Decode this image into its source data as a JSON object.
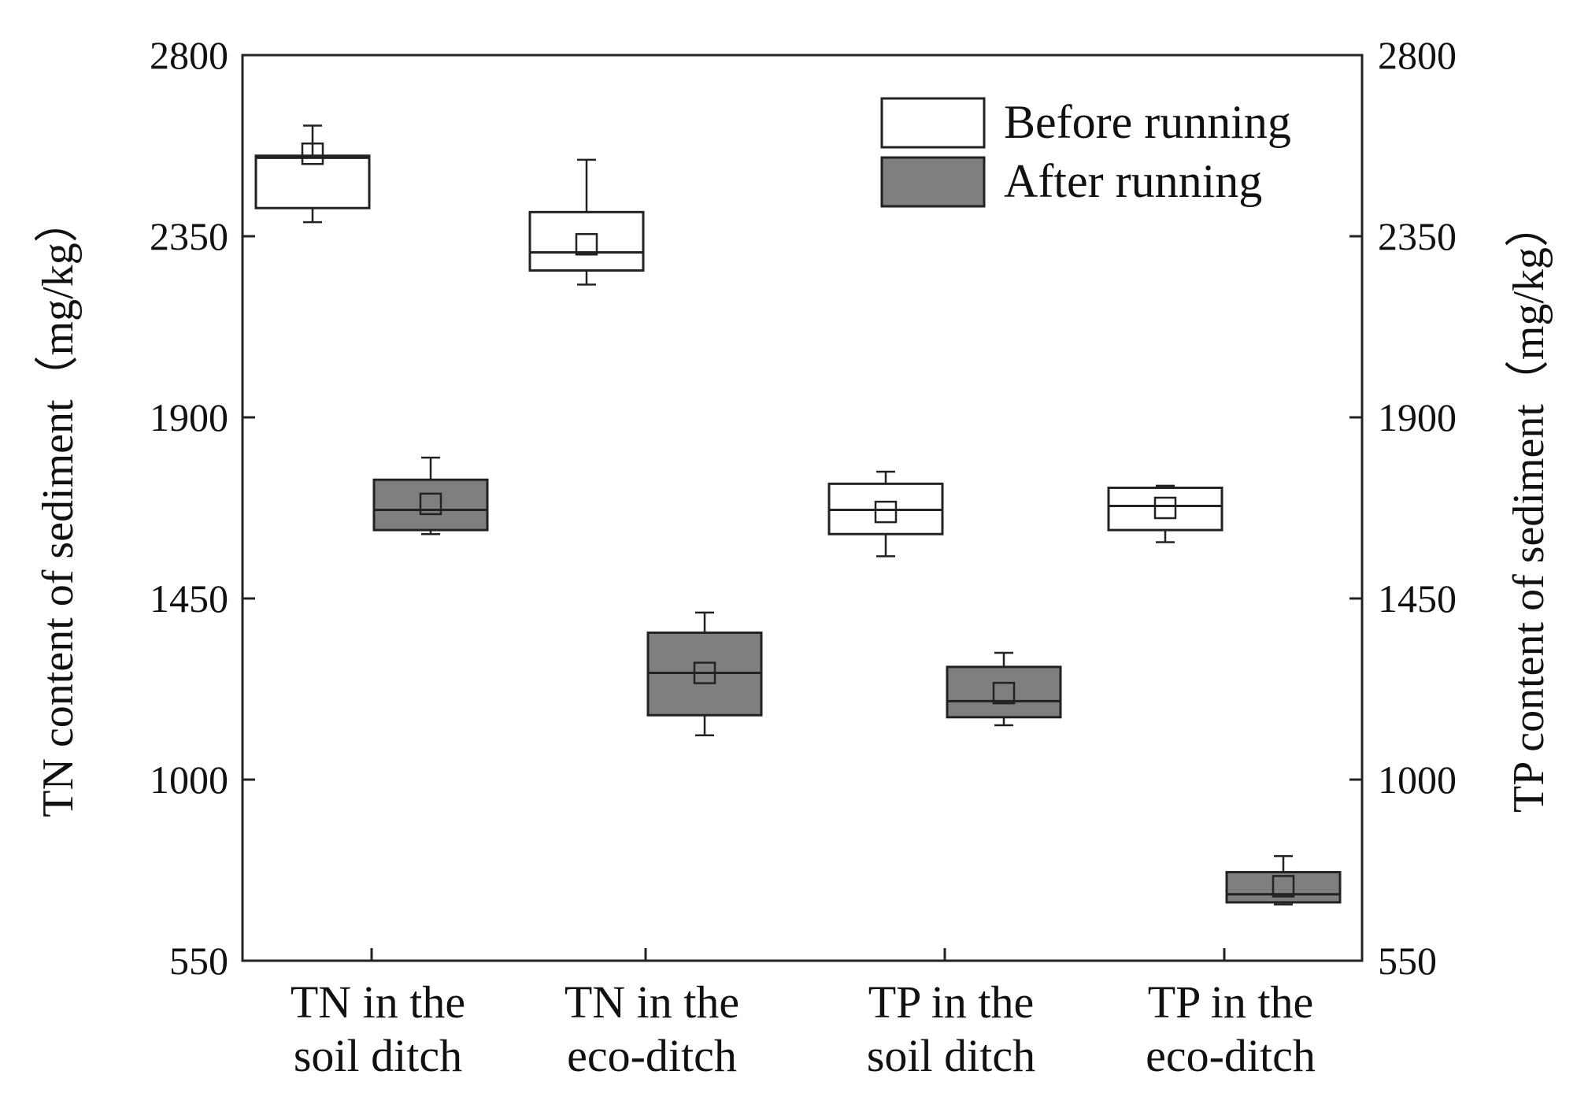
{
  "chart_data": {
    "type": "box",
    "title": "",
    "xlabel": "",
    "ylabel_left": "TN content of sediment（mg/kg）",
    "ylabel_right": "TP content of sediment（mg/kg）",
    "ylim": [
      550,
      2800
    ],
    "yticks": [
      550,
      1000,
      1450,
      1900,
      2350,
      2800
    ],
    "categories": [
      {
        "lines": [
          "TN in the",
          "soil ditch"
        ]
      },
      {
        "lines": [
          "TN in the",
          "eco-ditch"
        ]
      },
      {
        "lines": [
          "TP in the",
          "soil ditch"
        ]
      },
      {
        "lines": [
          "TP in the",
          "eco-ditch"
        ]
      }
    ],
    "legend": {
      "position": "top-right",
      "entries": [
        {
          "name": "Before running",
          "color": "#ffffff"
        },
        {
          "name": "After running",
          "color": "#7f7f7f"
        }
      ]
    },
    "series": [
      {
        "name": "Before running",
        "color": "#ffffff",
        "boxes": [
          {
            "category": 0,
            "min": 2385,
            "q1": 2420,
            "median": 2545,
            "q3": 2550,
            "max": 2625,
            "mean": 2555
          },
          {
            "category": 1,
            "min": 2230,
            "q1": 2265,
            "median": 2310,
            "q3": 2410,
            "max": 2540,
            "mean": 2330
          },
          {
            "category": 2,
            "min": 1555,
            "q1": 1610,
            "median": 1670,
            "q3": 1735,
            "max": 1765,
            "mean": 1665
          },
          {
            "category": 3,
            "min": 1590,
            "q1": 1620,
            "median": 1680,
            "q3": 1725,
            "max": 1730,
            "mean": 1675
          }
        ]
      },
      {
        "name": "After running",
        "color": "#7f7f7f",
        "boxes": [
          {
            "category": 0,
            "min": 1610,
            "q1": 1620,
            "median": 1670,
            "q3": 1745,
            "max": 1800,
            "mean": 1685
          },
          {
            "category": 1,
            "min": 1110,
            "q1": 1160,
            "median": 1265,
            "q3": 1365,
            "max": 1415,
            "mean": 1265
          },
          {
            "category": 2,
            "min": 1135,
            "q1": 1155,
            "median": 1195,
            "q3": 1280,
            "max": 1315,
            "mean": 1215
          },
          {
            "category": 3,
            "min": 690,
            "q1": 695,
            "median": 715,
            "q3": 770,
            "max": 810,
            "mean": 735
          }
        ]
      }
    ]
  }
}
